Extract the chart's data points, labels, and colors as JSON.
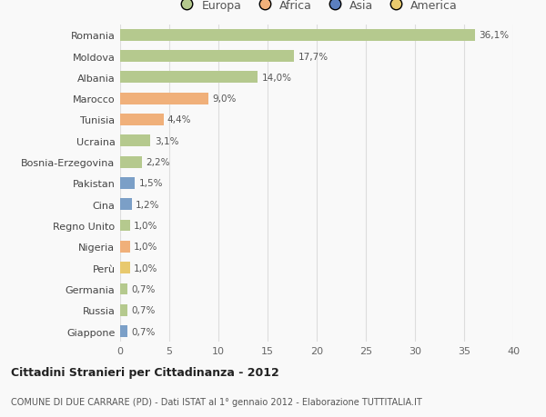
{
  "countries": [
    "Romania",
    "Moldova",
    "Albania",
    "Marocco",
    "Tunisia",
    "Ucraina",
    "Bosnia-Erzegovina",
    "Pakistan",
    "Cina",
    "Regno Unito",
    "Nigeria",
    "Perù",
    "Germania",
    "Russia",
    "Giappone"
  ],
  "values": [
    36.1,
    17.7,
    14.0,
    9.0,
    4.4,
    3.1,
    2.2,
    1.5,
    1.2,
    1.0,
    1.0,
    1.0,
    0.7,
    0.7,
    0.7
  ],
  "labels": [
    "36,1%",
    "17,7%",
    "14,0%",
    "9,0%",
    "4,4%",
    "3,1%",
    "2,2%",
    "1,5%",
    "1,2%",
    "1,0%",
    "1,0%",
    "1,0%",
    "0,7%",
    "0,7%",
    "0,7%"
  ],
  "colors": [
    "#b5c98e",
    "#b5c98e",
    "#b5c98e",
    "#f0b07a",
    "#f0b07a",
    "#b5c98e",
    "#b5c98e",
    "#7b9fc7",
    "#7b9fc7",
    "#b5c98e",
    "#f0b07a",
    "#e8c96e",
    "#b5c98e",
    "#b5c98e",
    "#7b9fc7"
  ],
  "legend_labels": [
    "Europa",
    "Africa",
    "Asia",
    "America"
  ],
  "legend_colors": [
    "#b5c98e",
    "#f0b07a",
    "#5b7fbf",
    "#e8c96e"
  ],
  "title": "Cittadini Stranieri per Cittadinanza - 2012",
  "subtitle": "COMUNE DI DUE CARRARE (PD) - Dati ISTAT al 1° gennaio 2012 - Elaborazione TUTTITALIA.IT",
  "xlim": [
    0,
    40
  ],
  "xticks": [
    0,
    5,
    10,
    15,
    20,
    25,
    30,
    35,
    40
  ],
  "bg_color": "#f9f9f9",
  "grid_color": "#dddddd",
  "bar_height": 0.55
}
